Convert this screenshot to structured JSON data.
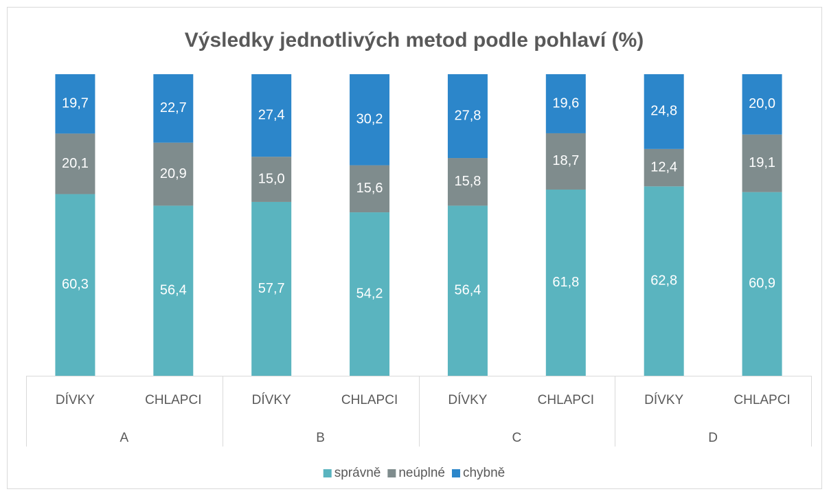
{
  "chart_data": {
    "type": "bar",
    "stacked": "percent",
    "title": "Výsledky jednotlivých metod podle pohlaví (%)",
    "categories": [
      "DÍVKY",
      "CHLAPCI",
      "DÍVKY",
      "CHLAPCI",
      "DÍVKY",
      "CHLAPCI",
      "DÍVKY",
      "CHLAPCI"
    ],
    "groups": [
      "A",
      "B",
      "C",
      "D"
    ],
    "series": [
      {
        "name": "správně",
        "color": "#5AB4BF",
        "values": [
          60.3,
          56.4,
          57.7,
          54.2,
          56.4,
          61.8,
          62.8,
          60.9
        ],
        "value_labels": [
          "60,3",
          "56,4",
          "57,7",
          "54,2",
          "56,4",
          "61,8",
          "62,8",
          "60,9"
        ]
      },
      {
        "name": "neúplné",
        "color": "#7F8C8D",
        "values": [
          20.1,
          20.9,
          15.0,
          15.6,
          15.8,
          18.7,
          12.4,
          19.1
        ],
        "value_labels": [
          "20,1",
          "20,9",
          "15,0",
          "15,6",
          "15,8",
          "18,7",
          "12,4",
          "19,1"
        ]
      },
      {
        "name": "chybně",
        "color": "#2C86CA",
        "values": [
          19.7,
          22.7,
          27.4,
          30.2,
          27.8,
          19.6,
          24.8,
          20.0
        ],
        "value_labels": [
          "19,7",
          "22,7",
          "27,4",
          "30,2",
          "27,8",
          "19,6",
          "24,8",
          "20,0"
        ]
      }
    ],
    "legend": "bottom"
  }
}
